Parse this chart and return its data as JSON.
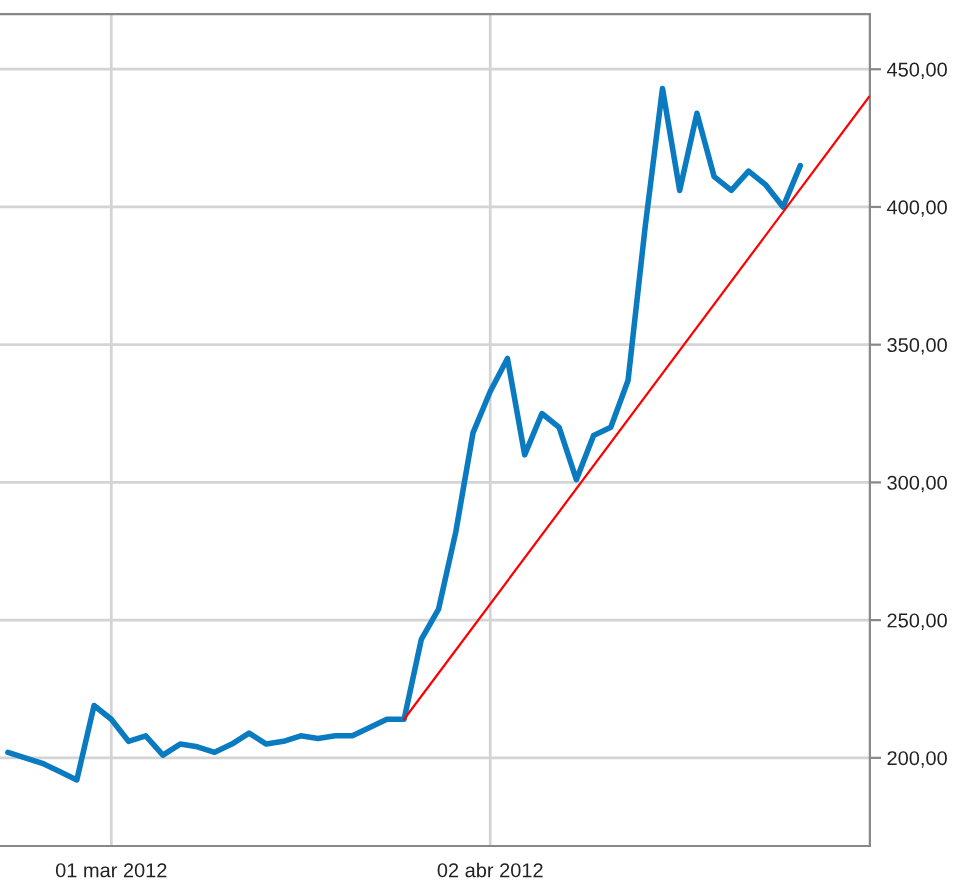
{
  "chart_data": {
    "type": "line",
    "categories": [
      null,
      null,
      null,
      null,
      null,
      null,
      "01 mar 2012",
      null,
      null,
      null,
      null,
      null,
      null,
      null,
      null,
      null,
      null,
      null,
      null,
      null,
      null,
      null,
      null,
      null,
      null,
      null,
      null,
      null,
      "02 abr 2012",
      null,
      null,
      null,
      null,
      null,
      null,
      null,
      null,
      null,
      null,
      null,
      null,
      null,
      null,
      null,
      null,
      null,
      null,
      null,
      null,
      null,
      null
    ],
    "series": [
      {
        "color": "#0a7bc1",
        "values": [
          202,
          200,
          198,
          195,
          192,
          219,
          214,
          206,
          208,
          201,
          205,
          204,
          202,
          205,
          209,
          205,
          206,
          208,
          207,
          208,
          208,
          211,
          214,
          214,
          243,
          254,
          282,
          318,
          333,
          345,
          310,
          325,
          320,
          301,
          317,
          320,
          337,
          393,
          443,
          406,
          434,
          411,
          406,
          413,
          408,
          400,
          415,
          null,
          null,
          null,
          null
        ]
      },
      {
        "type": "line",
        "color": "#ff0000",
        "values": [
          null,
          null,
          null,
          null,
          null,
          null,
          null,
          null,
          null,
          null,
          null,
          null,
          null,
          null,
          null,
          null,
          null,
          null,
          null,
          null,
          null,
          null,
          null,
          214,
          null,
          null,
          null,
          null,
          null,
          null,
          null,
          null,
          null,
          null,
          null,
          null,
          null,
          null,
          null,
          null,
          null,
          null,
          null,
          null,
          null,
          null,
          null,
          null,
          null,
          null,
          440
        ]
      }
    ],
    "ylim": [
      168,
      470
    ],
    "yticks": [
      {
        "value": 200,
        "label": "200,00"
      },
      {
        "value": 250,
        "label": "250,00"
      },
      {
        "value": 300,
        "label": "300,00"
      },
      {
        "value": 350,
        "label": "350,00"
      },
      {
        "value": 400,
        "label": "400,00"
      },
      {
        "value": 450,
        "label": "450,00"
      }
    ],
    "grid": true
  }
}
